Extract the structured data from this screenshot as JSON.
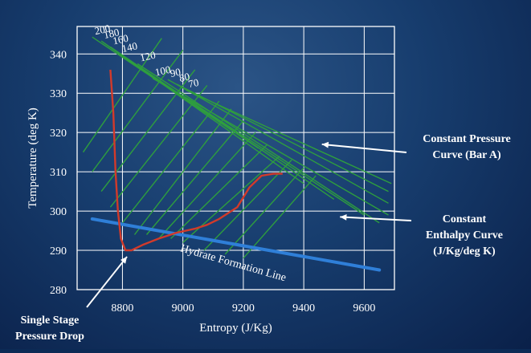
{
  "chart_data": {
    "type": "line",
    "xlabel": "Entropy (J/Kg)",
    "ylabel": "Temperature (deg K)",
    "xlim": [
      8650,
      9700
    ],
    "ylim": [
      280,
      347
    ],
    "xticks": [
      8800,
      9000,
      9200,
      9400,
      9600
    ],
    "yticks": [
      280,
      290,
      300,
      310,
      320,
      330,
      340
    ],
    "grid": true,
    "colors": {
      "frame": "#ffffff",
      "pressure": "#2e9e3e",
      "enthalpy": "#2e9e3e",
      "process": "#d23a2a",
      "hydrate": "#2f7fd8",
      "text": "#ffffff"
    },
    "pressure_labels": [
      "200",
      "180",
      "160",
      "140",
      "120",
      "100",
      "90",
      "80",
      "70"
    ],
    "pressure_curves": [
      {
        "name": "200",
        "x": [
          8700,
          9250
        ],
        "y": [
          344.3,
          316
        ]
      },
      {
        "name": "180",
        "x": [
          8730,
          9400
        ],
        "y": [
          343.3,
          307
        ]
      },
      {
        "name": "160",
        "x": [
          8760,
          9500
        ],
        "y": [
          341.8,
          303
        ]
      },
      {
        "name": "140",
        "x": [
          8790,
          9600
        ],
        "y": [
          339.8,
          299
        ]
      },
      {
        "name": "120",
        "x": [
          8850,
          9650
        ],
        "y": [
          337.5,
          297
        ]
      },
      {
        "name": "100",
        "x": [
          8900,
          9680
        ],
        "y": [
          333.8,
          299
        ]
      },
      {
        "name": "90",
        "x": [
          8950,
          9680
        ],
        "y": [
          333.5,
          302
        ]
      },
      {
        "name": "80",
        "x": [
          8980,
          9680
        ],
        "y": [
          332.3,
          305
        ]
      },
      {
        "name": "70",
        "x": [
          9010,
          9690
        ],
        "y": [
          330.8,
          307
        ]
      }
    ],
    "enthalpy_lines": [
      {
        "x": [
          8670,
          8930
        ],
        "y": [
          315,
          344
        ]
      },
      {
        "x": [
          8700,
          9000
        ],
        "y": [
          310,
          341
        ]
      },
      {
        "x": [
          8730,
          9040
        ],
        "y": [
          305,
          336
        ]
      },
      {
        "x": [
          8760,
          9080
        ],
        "y": [
          301,
          332
        ]
      },
      {
        "x": [
          8800,
          9120
        ],
        "y": [
          297,
          328
        ]
      },
      {
        "x": [
          8840,
          9160
        ],
        "y": [
          294,
          326
        ]
      },
      {
        "x": [
          8880,
          9200
        ],
        "y": [
          294,
          323
        ]
      },
      {
        "x": [
          8920,
          9240
        ],
        "y": [
          293,
          320
        ]
      },
      {
        "x": [
          8960,
          9280
        ],
        "y": [
          293,
          317
        ]
      },
      {
        "x": [
          9000,
          9320
        ],
        "y": [
          292,
          314
        ]
      },
      {
        "x": [
          9070,
          9360
        ],
        "y": [
          290,
          313
        ]
      },
      {
        "x": [
          9140,
          9400
        ],
        "y": [
          289,
          311
        ]
      },
      {
        "x": [
          9200,
          9440
        ],
        "y": [
          288,
          309
        ]
      }
    ],
    "process_curve": {
      "x": [
        8760,
        8770,
        8777,
        8785,
        8795,
        8810,
        8830,
        8870,
        8920,
        8980,
        9040,
        9080,
        9120,
        9180,
        9220,
        9260,
        9300,
        9330
      ],
      "y": [
        336,
        325,
        310,
        300,
        293,
        290,
        290,
        291.5,
        293,
        294.5,
        295.5,
        296.5,
        298,
        301,
        306,
        309,
        309.5,
        309.5
      ]
    },
    "hydrate_line": {
      "label": "Hydrate Formation Line",
      "x": [
        8700,
        9650
      ],
      "y": [
        298,
        285
      ]
    },
    "annotations": [
      {
        "text": [
          "Constant Pressure",
          "Curve (Bar A)"
        ],
        "arrow_to": [
          9460,
          317
        ]
      },
      {
        "text": [
          "Constant",
          "Enthalpy Curve",
          "(J/Kg/deg K)"
        ],
        "arrow_to": [
          9520,
          298.5
        ]
      },
      {
        "text": [
          "Single Stage",
          "Pressure Drop"
        ],
        "arrow_to": [
          8815,
          289
        ]
      }
    ]
  }
}
